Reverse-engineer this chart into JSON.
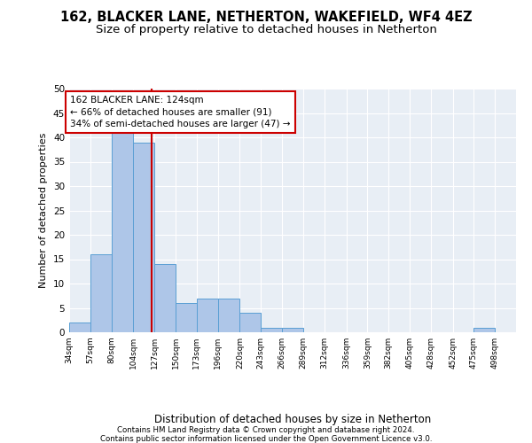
{
  "title": "162, BLACKER LANE, NETHERTON, WAKEFIELD, WF4 4EZ",
  "subtitle": "Size of property relative to detached houses in Netherton",
  "xlabel": "Distribution of detached houses by size in Netherton",
  "ylabel": "Number of detached properties",
  "bar_edges": [
    34,
    57,
    80,
    104,
    127,
    150,
    173,
    196,
    220,
    243,
    266,
    289,
    312,
    336,
    359,
    382,
    405,
    428,
    452,
    475,
    498
  ],
  "bar_values": [
    2,
    16,
    41,
    39,
    14,
    6,
    7,
    7,
    4,
    1,
    1,
    0,
    0,
    0,
    0,
    0,
    0,
    0,
    0,
    1,
    0
  ],
  "bar_color": "#aec6e8",
  "bar_edge_color": "#5a9fd4",
  "property_size": 124,
  "vline_color": "#cc0000",
  "annotation_line1": "162 BLACKER LANE: 124sqm",
  "annotation_line2": "← 66% of detached houses are smaller (91)",
  "annotation_line3": "34% of semi-detached houses are larger (47) →",
  "annotation_box_color": "#cc0000",
  "ylim": [
    0,
    50
  ],
  "yticks": [
    0,
    5,
    10,
    15,
    20,
    25,
    30,
    35,
    40,
    45,
    50
  ],
  "bg_color": "#e8eef5",
  "grid_color": "#ffffff",
  "footer_line1": "Contains HM Land Registry data © Crown copyright and database right 2024.",
  "footer_line2": "Contains public sector information licensed under the Open Government Licence v3.0.",
  "title_fontsize": 10.5,
  "subtitle_fontsize": 9.5,
  "tick_labels": [
    "34sqm",
    "57sqm",
    "80sqm",
    "104sqm",
    "127sqm",
    "150sqm",
    "173sqm",
    "196sqm",
    "220sqm",
    "243sqm",
    "266sqm",
    "289sqm",
    "312sqm",
    "336sqm",
    "359sqm",
    "382sqm",
    "405sqm",
    "428sqm",
    "452sqm",
    "475sqm",
    "498sqm"
  ]
}
